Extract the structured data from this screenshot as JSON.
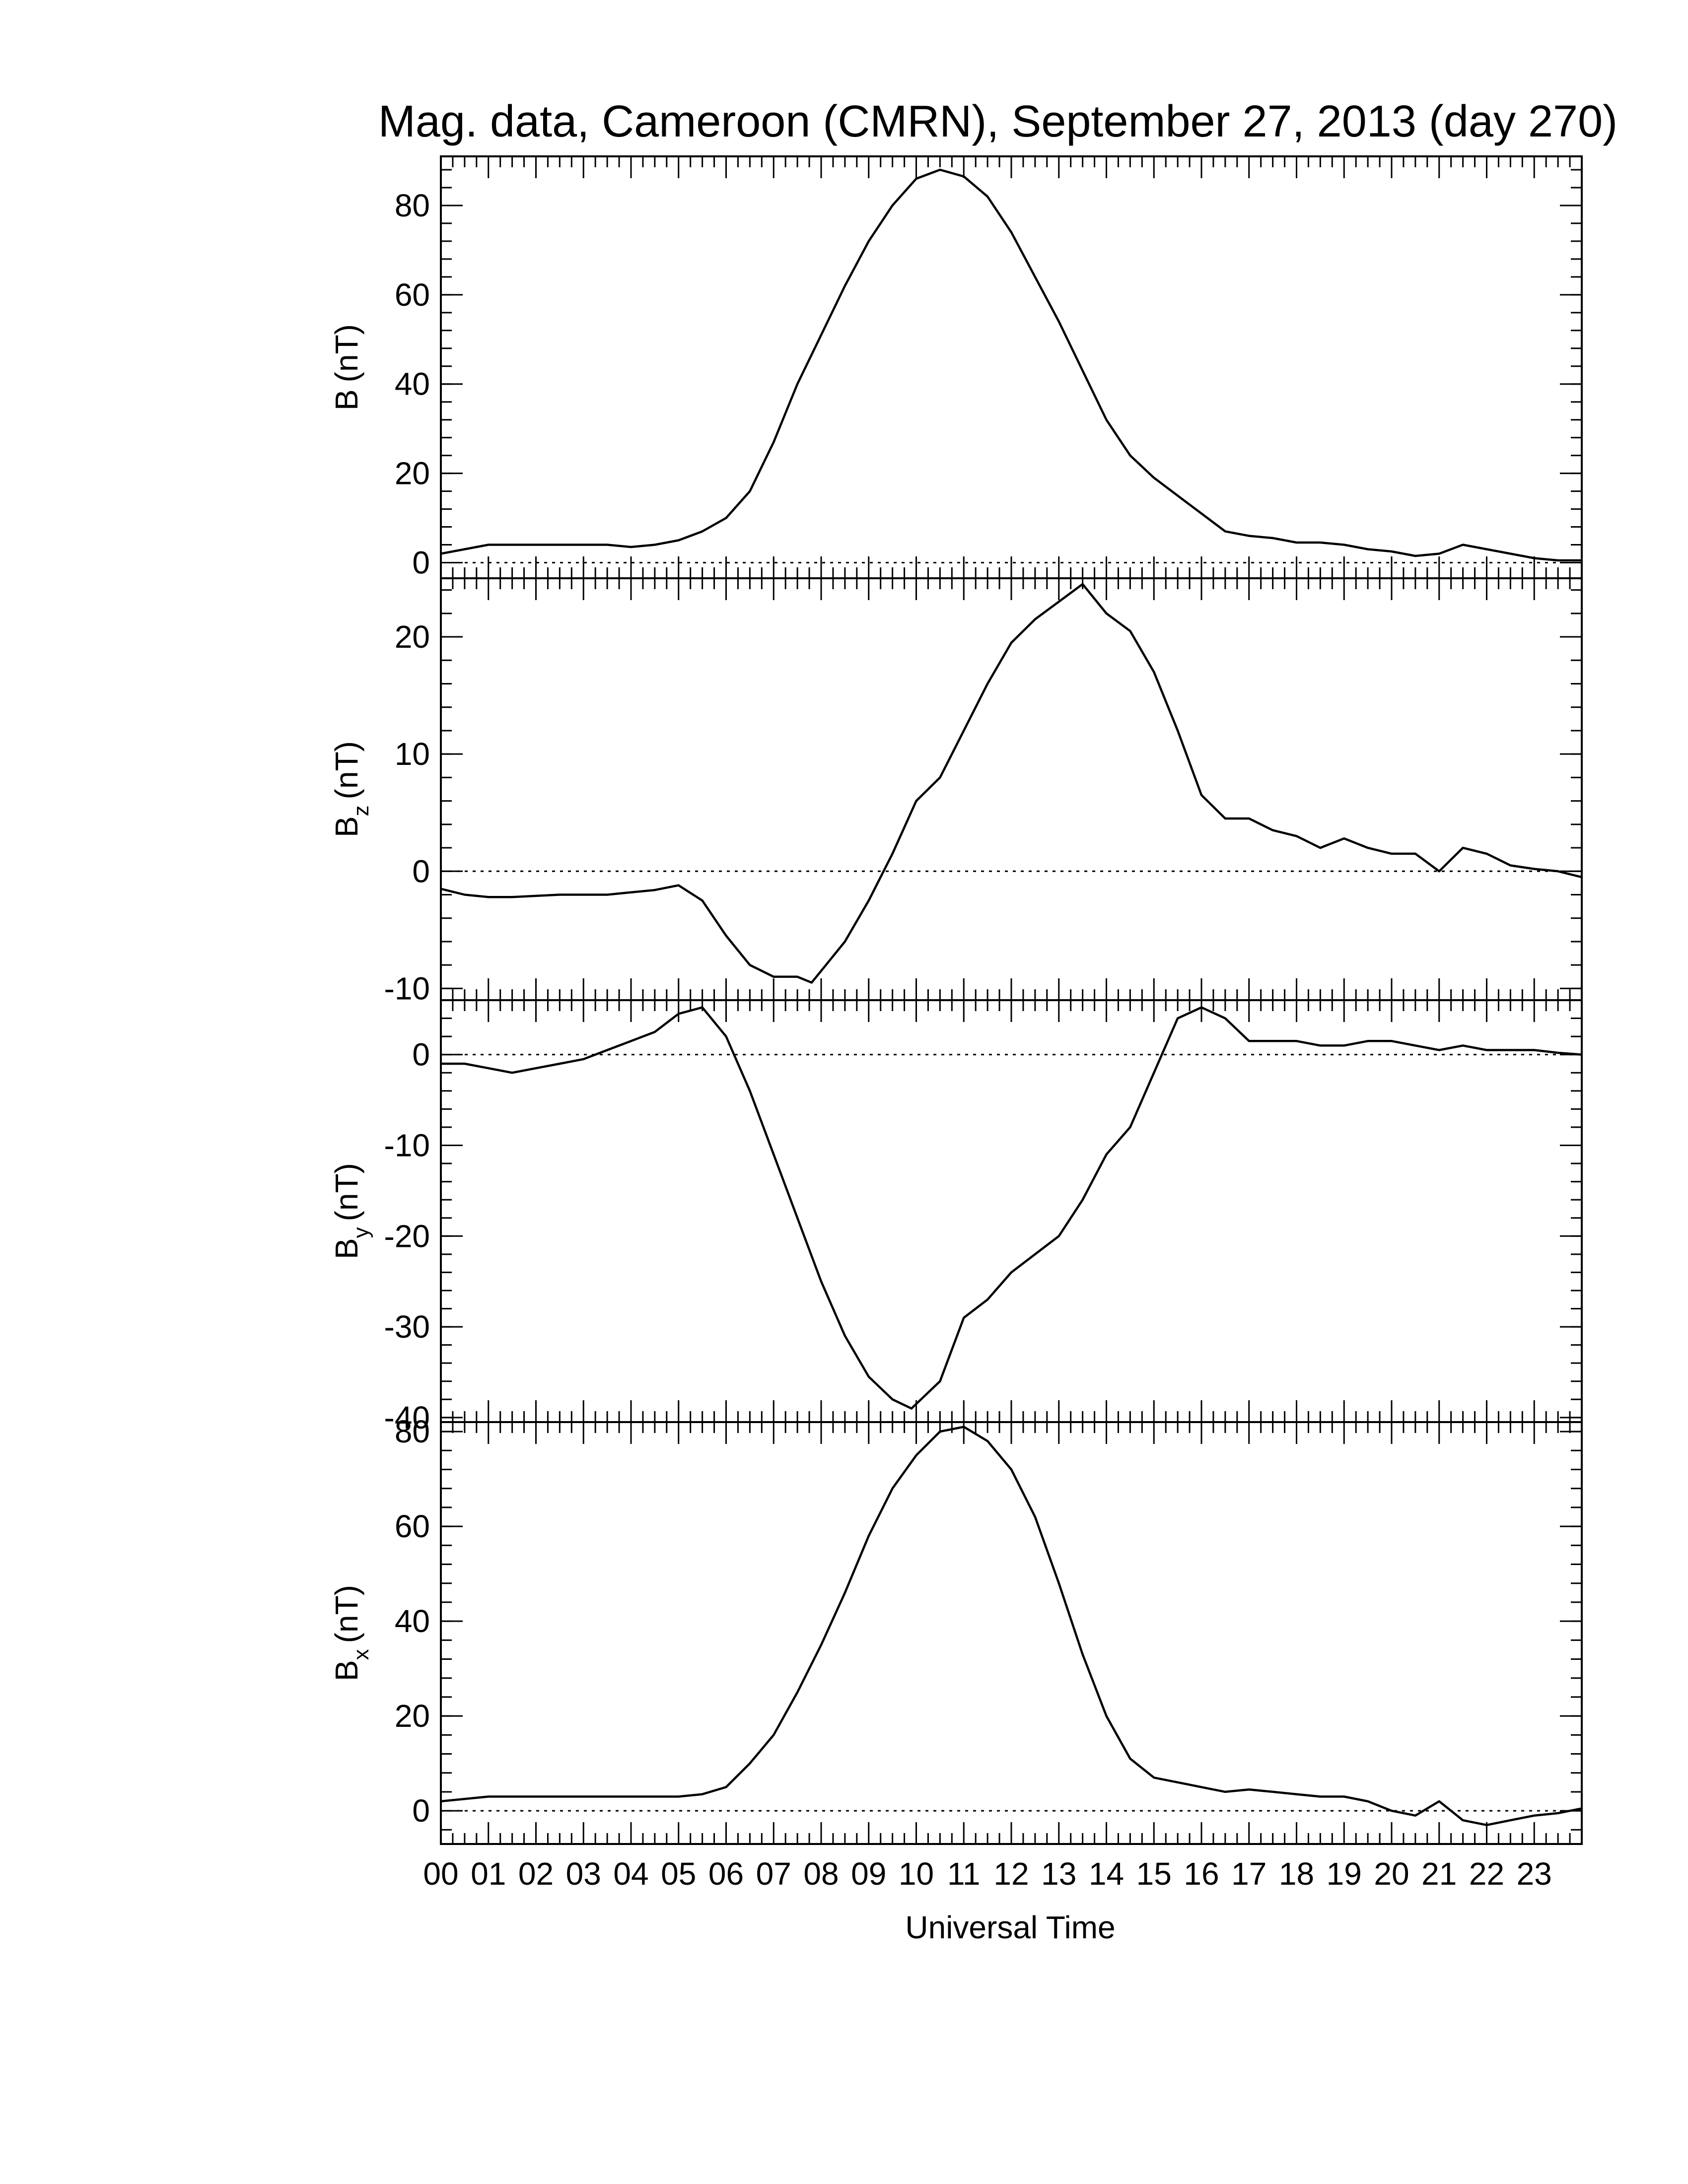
{
  "chart_data": {
    "type": "line",
    "title": "Mag. data, Cameroon (CMRN), September 27, 2013 (day 270)",
    "xlabel": "Universal Time",
    "xlim": [
      0,
      24
    ],
    "xticks": [
      "00",
      "01",
      "02",
      "03",
      "04",
      "05",
      "06",
      "07",
      "08",
      "09",
      "10",
      "11",
      "12",
      "13",
      "14",
      "15",
      "16",
      "17",
      "18",
      "19",
      "20",
      "21",
      "22",
      "23"
    ],
    "zero_line": "dotted",
    "panels": [
      {
        "id": "B",
        "ylabel_main": "B",
        "ylabel_sub": "",
        "ylabel_unit": "(nT)",
        "ylim": [
          -3.5,
          91
        ],
        "yticks": [
          0,
          20,
          40,
          60,
          80
        ],
        "x": [
          0,
          0.5,
          1,
          1.5,
          2,
          2.5,
          3,
          3.5,
          4,
          4.5,
          5,
          5.5,
          6,
          6.5,
          7,
          7.5,
          8,
          8.5,
          9,
          9.5,
          10,
          10.5,
          11,
          11.5,
          12,
          12.5,
          13,
          13.5,
          14,
          14.5,
          15,
          15.5,
          16,
          16.5,
          17,
          17.5,
          18,
          18.5,
          19,
          19.5,
          20,
          20.5,
          21,
          21.5,
          22,
          22.5,
          23,
          23.5,
          24
        ],
        "y": [
          2,
          3,
          4,
          4,
          4,
          4,
          4,
          4,
          3.5,
          4,
          5,
          7,
          10,
          16,
          27,
          40,
          51,
          62,
          72,
          80,
          86,
          88,
          86.5,
          82,
          74,
          64,
          54,
          43,
          32,
          24,
          19,
          15,
          11,
          7,
          6,
          5.5,
          4.5,
          4.5,
          4,
          3,
          2.5,
          1.5,
          2,
          4,
          3,
          2,
          1,
          0.5,
          0.5
        ]
      },
      {
        "id": "Bz",
        "ylabel_main": "B",
        "ylabel_sub": "z",
        "ylabel_unit": "(nT)",
        "ylim": [
          -11,
          25
        ],
        "yticks": [
          -10,
          0,
          10,
          20
        ],
        "x": [
          0,
          0.5,
          1,
          1.5,
          2,
          2.5,
          3,
          3.5,
          4,
          4.5,
          5,
          5.5,
          6,
          6.5,
          7,
          7.5,
          7.8,
          8,
          8.5,
          9,
          9.5,
          10,
          10.5,
          11,
          11.5,
          12,
          12.5,
          13,
          13.5,
          14,
          14.5,
          15,
          15.5,
          16,
          16.5,
          17,
          17.5,
          18,
          18.5,
          19,
          19.5,
          20,
          20.5,
          21,
          21.5,
          22,
          22.5,
          23,
          23.5,
          24
        ],
        "y": [
          -1.5,
          -2,
          -2.2,
          -2.2,
          -2.1,
          -2,
          -2,
          -2,
          -1.8,
          -1.6,
          -1.2,
          -2.5,
          -5.5,
          -8,
          -9,
          -9,
          -9.5,
          -8.5,
          -6,
          -2.5,
          1.5,
          6,
          8,
          12,
          16,
          19.5,
          21.5,
          23,
          24.5,
          22,
          20.5,
          17,
          12,
          6.5,
          4.5,
          4.5,
          3.5,
          3,
          2,
          2.8,
          2,
          1.5,
          1.5,
          0,
          2,
          1.5,
          0.5,
          0.2,
          0,
          -0.5
        ]
      },
      {
        "id": "By",
        "ylabel_main": "B",
        "ylabel_sub": "y",
        "ylabel_unit": "(nT)",
        "ylim": [
          -40.5,
          6
        ],
        "yticks": [
          -40,
          -30,
          -20,
          -10,
          0
        ],
        "x": [
          0,
          0.5,
          1,
          1.5,
          2,
          2.5,
          3,
          3.5,
          4,
          4.5,
          5,
          5.5,
          6,
          6.5,
          7,
          7.5,
          8,
          8.5,
          9,
          9.5,
          9.9,
          10.5,
          11,
          11.5,
          12,
          12.5,
          13,
          13.5,
          14,
          14.5,
          15,
          15.5,
          16,
          16.5,
          17,
          17.5,
          18,
          18.5,
          19,
          19.5,
          20,
          20.5,
          21,
          21.5,
          22,
          22.5,
          23,
          23.5,
          24
        ],
        "y": [
          -1,
          -1,
          -1.5,
          -2,
          -1.5,
          -1,
          -0.5,
          0.5,
          1.5,
          2.5,
          4.5,
          5.2,
          2,
          -4,
          -11,
          -18,
          -25,
          -31,
          -35.5,
          -38,
          -39,
          -36,
          -29,
          -27,
          -24,
          -22,
          -20,
          -16,
          -11,
          -8,
          -2,
          4,
          5.2,
          4,
          1.5,
          1.5,
          1.5,
          1,
          1,
          1.5,
          1.5,
          1,
          0.5,
          1,
          0.5,
          0.5,
          0.5,
          0.2,
          0
        ]
      },
      {
        "id": "Bx",
        "ylabel_main": "B",
        "ylabel_sub": "x",
        "ylabel_unit": "(nT)",
        "ylim": [
          -7,
          82
        ],
        "yticks": [
          0,
          20,
          40,
          60,
          80
        ],
        "x": [
          0,
          0.5,
          1,
          1.5,
          2,
          2.5,
          3,
          3.5,
          4,
          4.5,
          5,
          5.5,
          6,
          6.5,
          7,
          7.5,
          8,
          8.5,
          9,
          9.5,
          10,
          10.5,
          11,
          11.5,
          12,
          12.5,
          13,
          13.5,
          14,
          14.5,
          15,
          15.5,
          16,
          16.5,
          17,
          17.5,
          18,
          18.5,
          19,
          19.5,
          20,
          20.5,
          21,
          21.5,
          22,
          22.5,
          23,
          23.5,
          24
        ],
        "y": [
          2,
          2.5,
          3,
          3,
          3,
          3,
          3,
          3,
          3,
          3,
          3,
          3.5,
          5,
          10,
          16,
          25,
          35,
          46,
          58,
          68,
          75,
          80,
          81,
          78,
          72,
          62,
          48,
          33,
          20,
          11,
          7,
          6,
          5,
          4,
          4.5,
          4,
          3.5,
          3,
          3,
          2,
          0,
          -1,
          2,
          -2,
          -3,
          -2,
          -1,
          -0.5,
          0.5
        ]
      }
    ]
  }
}
